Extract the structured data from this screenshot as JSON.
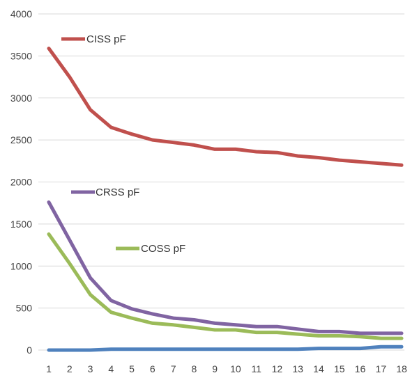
{
  "chart_data": {
    "type": "line",
    "title": "",
    "xlabel": "",
    "ylabel": "",
    "ylim": [
      0,
      4000
    ],
    "yticks": [
      0,
      500,
      1000,
      1500,
      2000,
      2500,
      3000,
      3500,
      4000
    ],
    "categories": [
      "1",
      "2",
      "3",
      "4",
      "5",
      "6",
      "7",
      "8",
      "9",
      "10",
      "11",
      "12",
      "13",
      "14",
      "15",
      "16",
      "17",
      "18"
    ],
    "grid": true,
    "series": [
      {
        "name": "CISS  pF",
        "color": "#c0504d",
        "values": [
          3590,
          3250,
          2860,
          2650,
          2570,
          2500,
          2470,
          2440,
          2390,
          2390,
          2360,
          2350,
          2310,
          2290,
          2260,
          2240,
          2220,
          2200
        ]
      },
      {
        "name": "CRSS pF",
        "color": "#8064a2",
        "values": [
          1760,
          1310,
          860,
          590,
          490,
          430,
          380,
          360,
          320,
          300,
          280,
          280,
          250,
          220,
          220,
          200,
          200,
          200
        ]
      },
      {
        "name": "COSS  pF",
        "color": "#9bbb59",
        "values": [
          1380,
          1030,
          660,
          450,
          380,
          320,
          300,
          270,
          240,
          240,
          210,
          210,
          190,
          170,
          170,
          160,
          140,
          140
        ]
      },
      {
        "name": "",
        "color": "#4f81bd",
        "values": [
          0,
          0,
          0,
          10,
          10,
          10,
          10,
          10,
          10,
          10,
          10,
          10,
          10,
          20,
          20,
          20,
          40,
          40
        ]
      }
    ]
  }
}
